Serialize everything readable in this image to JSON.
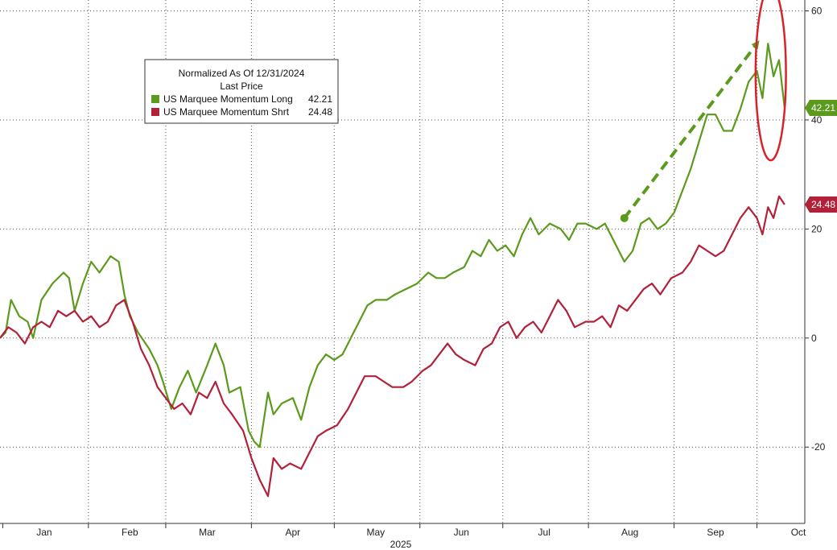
{
  "chart_data": {
    "type": "line",
    "year_label": "2025",
    "x_axis": {
      "month_labels": [
        "Jan",
        "Feb",
        "Mar",
        "Apr",
        "May",
        "Jun",
        "Jul",
        "Aug",
        "Sep",
        "Oct"
      ],
      "start": "2024-12-31",
      "end": "2025-10-09"
    },
    "y_axis": {
      "ticks": [
        -20,
        0,
        20,
        40,
        60
      ],
      "range": [
        -34,
        62
      ],
      "position": "right",
      "grid": true
    },
    "legend": {
      "placement": "top-left",
      "header_line1": "Normalized As Of 12/31/2024",
      "header_line2": "Last Price",
      "entries": [
        {
          "name": "US Marquee Momentum Long",
          "value": "42.21",
          "color": "#5b9a1c"
        },
        {
          "name": "US Marquee Momentum Shrt",
          "value": "24.48",
          "color": "#b2213a"
        }
      ]
    },
    "series": [
      {
        "name": "US Marquee Momentum Long",
        "color": "#5b9a1c",
        "last_value_label": "42.21",
        "points": [
          [
            "2024-12-31",
            0
          ],
          [
            "2025-01-02",
            1
          ],
          [
            "2025-01-04",
            7
          ],
          [
            "2025-01-07",
            4
          ],
          [
            "2025-01-10",
            3
          ],
          [
            "2025-01-12",
            0
          ],
          [
            "2025-01-15",
            7
          ],
          [
            "2025-01-19",
            10
          ],
          [
            "2025-01-23",
            12
          ],
          [
            "2025-01-25",
            11
          ],
          [
            "2025-01-27",
            5
          ],
          [
            "2025-01-30",
            10
          ],
          [
            "2025-02-02",
            14
          ],
          [
            "2025-02-05",
            12
          ],
          [
            "2025-02-09",
            15
          ],
          [
            "2025-02-12",
            14
          ],
          [
            "2025-02-14",
            8
          ],
          [
            "2025-02-16",
            4
          ],
          [
            "2025-02-19",
            1
          ],
          [
            "2025-02-23",
            -2
          ],
          [
            "2025-02-26",
            -5
          ],
          [
            "2025-02-28",
            -8
          ],
          [
            "2025-03-03",
            -13
          ],
          [
            "2025-03-06",
            -9
          ],
          [
            "2025-03-09",
            -6
          ],
          [
            "2025-03-12",
            -10
          ],
          [
            "2025-03-16",
            -5
          ],
          [
            "2025-03-19",
            -1
          ],
          [
            "2025-03-22",
            -5
          ],
          [
            "2025-03-24",
            -10
          ],
          [
            "2025-03-28",
            -9
          ],
          [
            "2025-03-31",
            -17
          ],
          [
            "2025-04-02",
            -19
          ],
          [
            "2025-04-04",
            -20
          ],
          [
            "2025-04-07",
            -10
          ],
          [
            "2025-04-09",
            -14
          ],
          [
            "2025-04-12",
            -12
          ],
          [
            "2025-04-16",
            -11
          ],
          [
            "2025-04-19",
            -15
          ],
          [
            "2025-04-22",
            -9
          ],
          [
            "2025-04-25",
            -5
          ],
          [
            "2025-04-28",
            -3
          ],
          [
            "2025-05-01",
            -4
          ],
          [
            "2025-05-04",
            -3
          ],
          [
            "2025-05-07",
            0
          ],
          [
            "2025-05-10",
            3
          ],
          [
            "2025-05-13",
            6
          ],
          [
            "2025-05-16",
            7
          ],
          [
            "2025-05-20",
            7
          ],
          [
            "2025-05-23",
            8
          ],
          [
            "2025-05-27",
            9
          ],
          [
            "2025-05-31",
            10
          ],
          [
            "2025-06-04",
            12
          ],
          [
            "2025-06-07",
            11
          ],
          [
            "2025-06-10",
            11
          ],
          [
            "2025-06-13",
            12
          ],
          [
            "2025-06-17",
            13
          ],
          [
            "2025-06-20",
            16
          ],
          [
            "2025-06-23",
            15
          ],
          [
            "2025-06-26",
            18
          ],
          [
            "2025-06-29",
            16
          ],
          [
            "2025-07-02",
            17
          ],
          [
            "2025-07-05",
            15
          ],
          [
            "2025-07-08",
            19
          ],
          [
            "2025-07-11",
            22
          ],
          [
            "2025-07-14",
            19
          ],
          [
            "2025-07-18",
            21
          ],
          [
            "2025-07-22",
            20
          ],
          [
            "2025-07-25",
            18
          ],
          [
            "2025-07-28",
            21
          ],
          [
            "2025-07-31",
            21
          ],
          [
            "2025-08-04",
            20
          ],
          [
            "2025-08-07",
            21
          ],
          [
            "2025-08-11",
            17
          ],
          [
            "2025-08-14",
            14
          ],
          [
            "2025-08-17",
            16
          ],
          [
            "2025-08-20",
            21
          ],
          [
            "2025-08-23",
            22
          ],
          [
            "2025-08-26",
            20
          ],
          [
            "2025-08-29",
            21
          ],
          [
            "2025-09-01",
            23
          ],
          [
            "2025-09-04",
            27
          ],
          [
            "2025-09-07",
            31
          ],
          [
            "2025-09-10",
            36
          ],
          [
            "2025-09-13",
            41
          ],
          [
            "2025-09-16",
            41
          ],
          [
            "2025-09-19",
            38
          ],
          [
            "2025-09-22",
            38
          ],
          [
            "2025-09-25",
            42
          ],
          [
            "2025-09-28",
            47
          ],
          [
            "2025-10-01",
            49
          ],
          [
            "2025-10-03",
            44
          ],
          [
            "2025-10-05",
            54
          ],
          [
            "2025-10-07",
            48
          ],
          [
            "2025-10-09",
            51
          ],
          [
            "2025-10-11",
            42.21
          ]
        ]
      },
      {
        "name": "US Marquee Momentum Shrt",
        "color": "#b2213a",
        "last_value_label": "24.48",
        "points": [
          [
            "2024-12-31",
            0
          ],
          [
            "2025-01-03",
            2
          ],
          [
            "2025-01-06",
            1
          ],
          [
            "2025-01-09",
            -1
          ],
          [
            "2025-01-12",
            2
          ],
          [
            "2025-01-15",
            3
          ],
          [
            "2025-01-18",
            2
          ],
          [
            "2025-01-21",
            5
          ],
          [
            "2025-01-24",
            4
          ],
          [
            "2025-01-27",
            5
          ],
          [
            "2025-01-30",
            3
          ],
          [
            "2025-02-02",
            4
          ],
          [
            "2025-02-05",
            2
          ],
          [
            "2025-02-08",
            3
          ],
          [
            "2025-02-11",
            6
          ],
          [
            "2025-02-14",
            7
          ],
          [
            "2025-02-17",
            3
          ],
          [
            "2025-02-20",
            -2
          ],
          [
            "2025-02-23",
            -5
          ],
          [
            "2025-02-26",
            -9
          ],
          [
            "2025-03-01",
            -11
          ],
          [
            "2025-03-04",
            -13
          ],
          [
            "2025-03-07",
            -12
          ],
          [
            "2025-03-10",
            -14
          ],
          [
            "2025-03-13",
            -10
          ],
          [
            "2025-03-16",
            -11
          ],
          [
            "2025-03-19",
            -8
          ],
          [
            "2025-03-22",
            -12
          ],
          [
            "2025-03-25",
            -14
          ],
          [
            "2025-03-29",
            -17
          ],
          [
            "2025-04-01",
            -22
          ],
          [
            "2025-04-04",
            -26
          ],
          [
            "2025-04-07",
            -29
          ],
          [
            "2025-04-09",
            -22
          ],
          [
            "2025-04-12",
            -24
          ],
          [
            "2025-04-15",
            -23
          ],
          [
            "2025-04-19",
            -24
          ],
          [
            "2025-04-22",
            -21
          ],
          [
            "2025-04-25",
            -18
          ],
          [
            "2025-04-28",
            -17
          ],
          [
            "2025-05-02",
            -16
          ],
          [
            "2025-05-06",
            -13
          ],
          [
            "2025-05-09",
            -10
          ],
          [
            "2025-05-12",
            -7
          ],
          [
            "2025-05-16",
            -7
          ],
          [
            "2025-05-19",
            -8
          ],
          [
            "2025-05-22",
            -9
          ],
          [
            "2025-05-26",
            -9
          ],
          [
            "2025-05-29",
            -8
          ],
          [
            "2025-06-02",
            -6
          ],
          [
            "2025-06-05",
            -5
          ],
          [
            "2025-06-08",
            -3
          ],
          [
            "2025-06-11",
            -1
          ],
          [
            "2025-06-14",
            -3
          ],
          [
            "2025-06-17",
            -4
          ],
          [
            "2025-06-21",
            -5
          ],
          [
            "2025-06-24",
            -2
          ],
          [
            "2025-06-27",
            -1
          ],
          [
            "2025-06-30",
            2
          ],
          [
            "2025-07-03",
            3
          ],
          [
            "2025-07-06",
            0
          ],
          [
            "2025-07-09",
            2
          ],
          [
            "2025-07-12",
            3
          ],
          [
            "2025-07-15",
            1
          ],
          [
            "2025-07-18",
            4
          ],
          [
            "2025-07-21",
            7
          ],
          [
            "2025-07-24",
            5
          ],
          [
            "2025-07-27",
            2
          ],
          [
            "2025-07-31",
            3
          ],
          [
            "2025-08-03",
            3
          ],
          [
            "2025-08-06",
            4
          ],
          [
            "2025-08-09",
            2
          ],
          [
            "2025-08-12",
            6
          ],
          [
            "2025-08-15",
            5
          ],
          [
            "2025-08-18",
            7
          ],
          [
            "2025-08-21",
            9
          ],
          [
            "2025-08-24",
            10
          ],
          [
            "2025-08-27",
            8
          ],
          [
            "2025-08-31",
            11
          ],
          [
            "2025-09-04",
            12
          ],
          [
            "2025-09-07",
            14
          ],
          [
            "2025-09-10",
            17
          ],
          [
            "2025-09-13",
            16
          ],
          [
            "2025-09-16",
            15
          ],
          [
            "2025-09-19",
            16
          ],
          [
            "2025-09-22",
            19
          ],
          [
            "2025-09-25",
            22
          ],
          [
            "2025-09-28",
            24
          ],
          [
            "2025-10-01",
            22
          ],
          [
            "2025-10-03",
            19
          ],
          [
            "2025-10-05",
            24
          ],
          [
            "2025-10-07",
            22
          ],
          [
            "2025-10-09",
            26
          ],
          [
            "2025-10-11",
            24.48
          ]
        ]
      }
    ],
    "annotations": [
      {
        "type": "dashed-arrow",
        "color": "#5b9a1c",
        "from": [
          "2025-08-14",
          22
        ],
        "to": [
          "2025-10-01",
          54
        ]
      },
      {
        "type": "ellipse",
        "color": "#d8232a",
        "center": [
          "2025-10-06",
          48.5
        ],
        "rx_days": 5.5,
        "ry_value": 10
      }
    ]
  }
}
